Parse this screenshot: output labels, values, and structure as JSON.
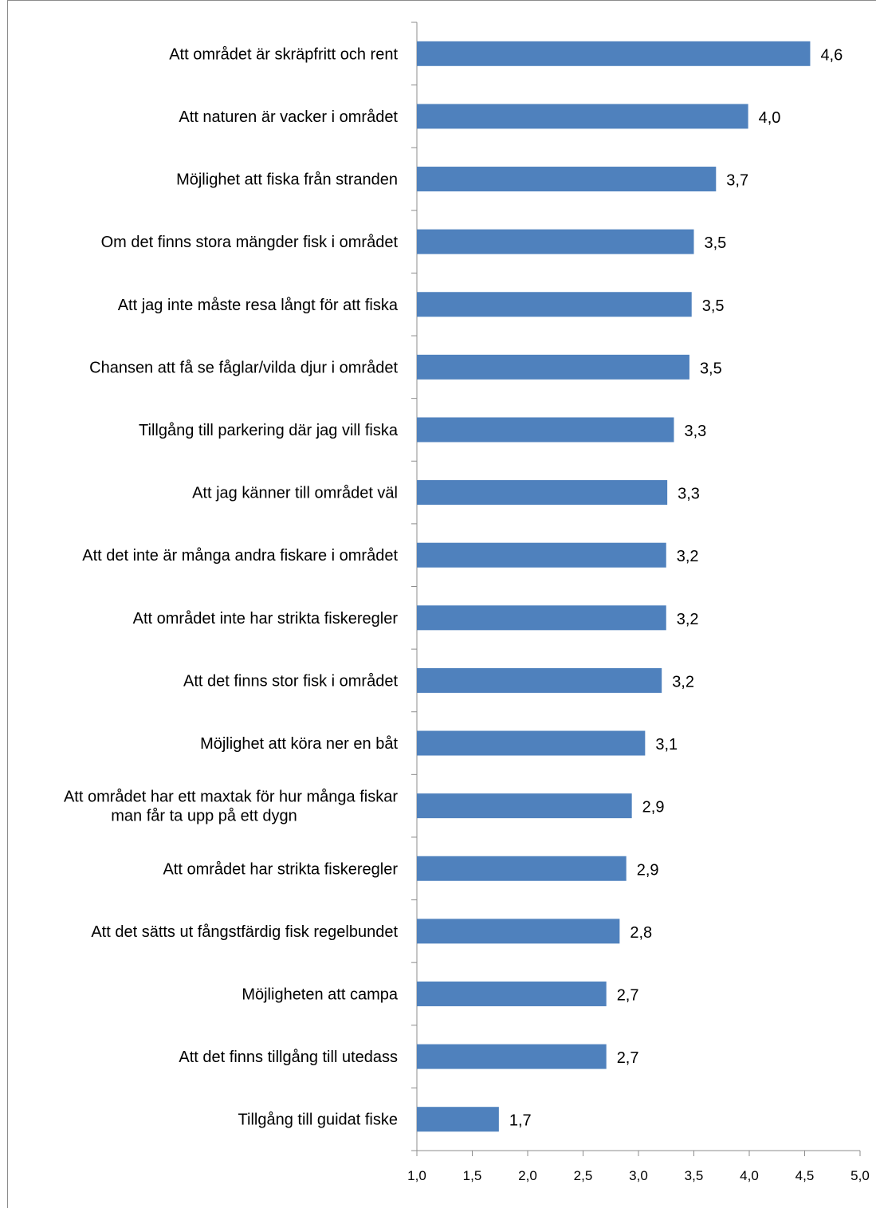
{
  "chart_data": {
    "type": "bar",
    "orientation": "horizontal",
    "title": "",
    "xlabel": "",
    "ylabel": "",
    "xlim": [
      1.0,
      5.0
    ],
    "x_ticks": [
      "1,0",
      "1,5",
      "2,0",
      "2,5",
      "3,0",
      "3,5",
      "4,0",
      "4,5",
      "5,0"
    ],
    "grid": false,
    "legend": "none",
    "bar_color": "#4F81BD",
    "categories": [
      [
        "Att området är skräpfritt och rent"
      ],
      [
        "Att naturen är vacker i området"
      ],
      [
        "Möjlighet att fiska från stranden"
      ],
      [
        "Om det finns stora mängder fisk i området"
      ],
      [
        "Att jag inte måste resa långt för att fiska"
      ],
      [
        "Chansen att få se fåglar/vilda djur i området"
      ],
      [
        "Tillgång till parkering där jag vill fiska"
      ],
      [
        "Att jag känner till området väl"
      ],
      [
        "Att det inte är många andra fiskare i området"
      ],
      [
        "Att området inte har strikta fiskeregler"
      ],
      [
        "Att det finns stor fisk i området"
      ],
      [
        "Möjlighet att köra ner en båt"
      ],
      [
        "Att området har ett maxtak för hur många fiskar",
        "man får ta upp på ett dygn"
      ],
      [
        "Att området har strikta fiskeregler"
      ],
      [
        "Att det sätts ut fångstfärdig fisk regelbundet"
      ],
      [
        "Möjligheten att campa"
      ],
      [
        "Att det finns tillgång till utedass"
      ],
      [
        "Tillgång till guidat fiske"
      ]
    ],
    "values": [
      4.55,
      3.99,
      3.7,
      3.5,
      3.48,
      3.46,
      3.32,
      3.26,
      3.25,
      3.25,
      3.21,
      3.06,
      2.94,
      2.89,
      2.83,
      2.71,
      2.71,
      1.74
    ],
    "value_labels": [
      "4,6",
      "4,0",
      "3,7",
      "3,5",
      "3,5",
      "3,5",
      "3,3",
      "3,3",
      "3,2",
      "3,2",
      "3,2",
      "3,1",
      "2,9",
      "2,9",
      "2,8",
      "2,7",
      "2,7",
      "1,7"
    ]
  }
}
